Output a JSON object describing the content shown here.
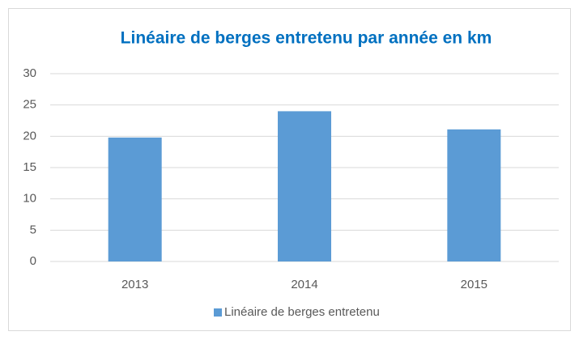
{
  "chart_data": {
    "type": "bar",
    "title": "Linéaire de berges entretenu par année en km",
    "categories": [
      "2013",
      "2014",
      "2015"
    ],
    "series": [
      {
        "name": "Linéaire de berges entretenu",
        "color": "#5b9bd5",
        "values": [
          19.8,
          24,
          21.1
        ]
      }
    ],
    "ylim": [
      0,
      30
    ],
    "yticks": [
      0,
      5,
      10,
      15,
      20,
      25,
      30
    ],
    "grid": true,
    "legend": "bottom"
  }
}
